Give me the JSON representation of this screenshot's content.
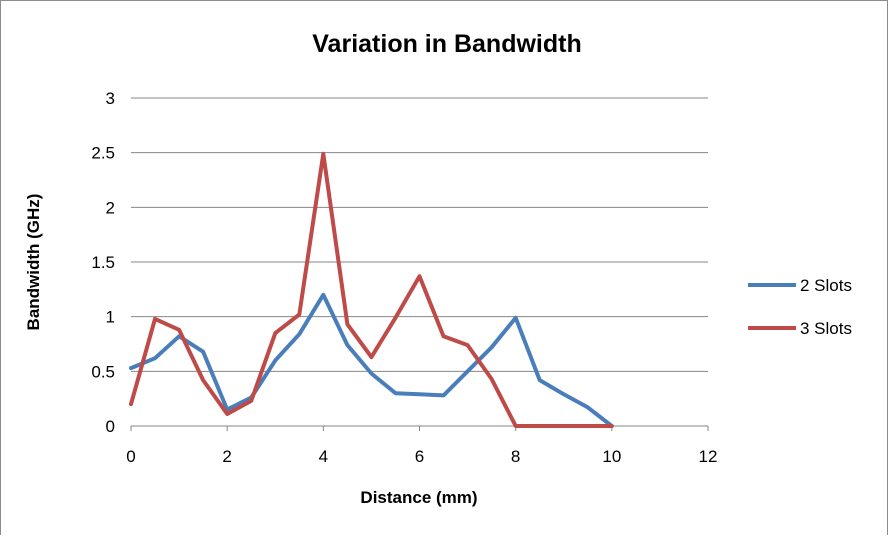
{
  "chart_data": {
    "type": "line",
    "title": "Variation in Bandwidth",
    "xlabel": "Distance (mm)",
    "ylabel": "Bandwidth (GHz)",
    "xlim": [
      0,
      12
    ],
    "ylim": [
      0,
      3
    ],
    "x_ticks": [
      0,
      2,
      4,
      6,
      8,
      10,
      12
    ],
    "y_ticks": [
      0,
      0.5,
      1,
      1.5,
      2,
      2.5,
      3
    ],
    "grid": "horizontal",
    "legend": "right",
    "series": [
      {
        "name": "2 Slots",
        "color": "#4a7ebb",
        "x": [
          0,
          0.5,
          1,
          1.5,
          2,
          2.5,
          3,
          3.5,
          4,
          4.5,
          5,
          5.5,
          6,
          6.5,
          7,
          7.5,
          8,
          8.5,
          9,
          9.5,
          10
        ],
        "y": [
          0.53,
          0.62,
          0.82,
          0.68,
          0.15,
          0.26,
          0.6,
          0.84,
          1.2,
          0.74,
          0.48,
          0.3,
          0.29,
          0.28,
          0.5,
          0.72,
          0.99,
          0.42,
          0.29,
          0.17,
          0
        ]
      },
      {
        "name": "3 Slots",
        "color": "#be4b48",
        "x": [
          0,
          0.5,
          1,
          1.5,
          2,
          2.5,
          3,
          3.5,
          4,
          4.5,
          5,
          5.5,
          6,
          6.5,
          7,
          7.5,
          8,
          8.5,
          9,
          9.5,
          10
        ],
        "y": [
          0.2,
          0.98,
          0.88,
          0.42,
          0.11,
          0.23,
          0.85,
          1.02,
          2.49,
          0.93,
          0.63,
          0.99,
          1.37,
          0.82,
          0.74,
          0.43,
          0,
          0,
          0,
          0,
          0
        ]
      }
    ]
  }
}
